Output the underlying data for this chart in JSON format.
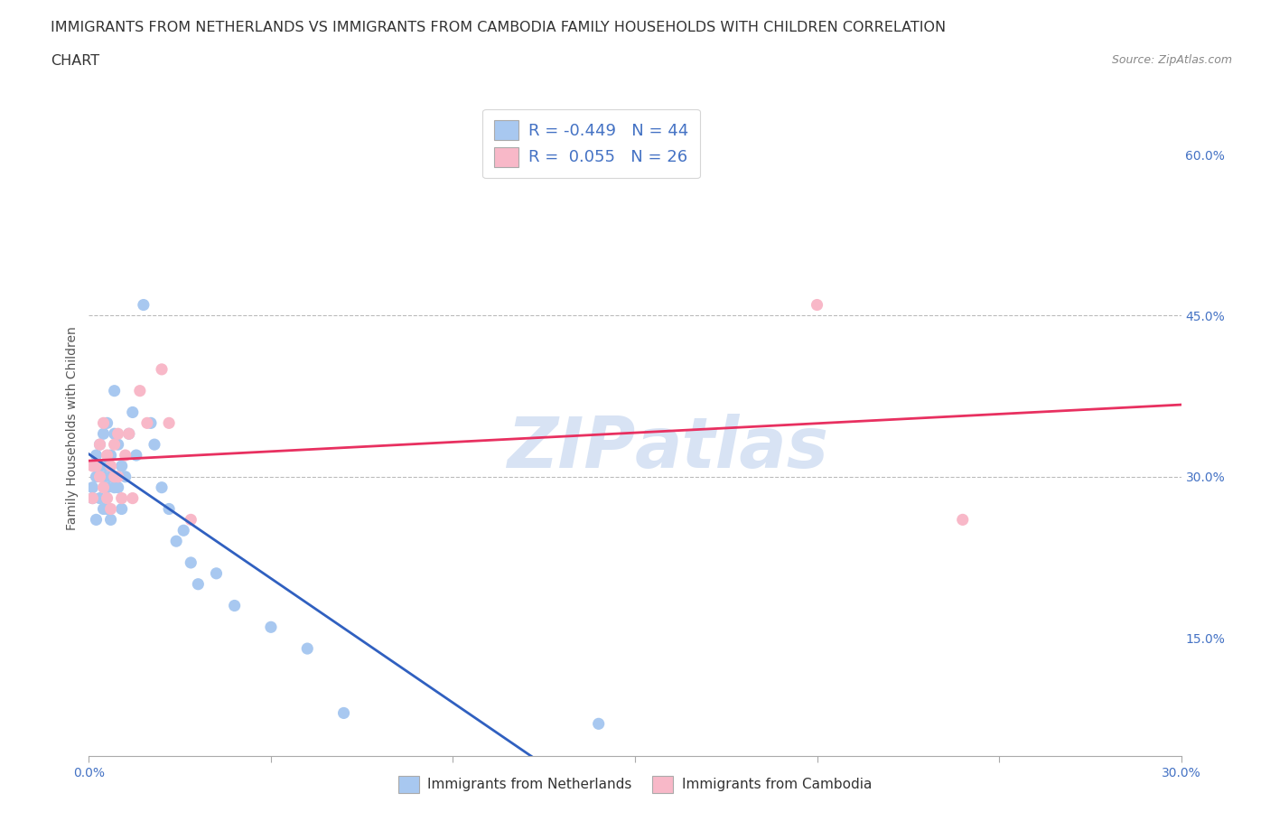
{
  "title_line1": "IMMIGRANTS FROM NETHERLANDS VS IMMIGRANTS FROM CAMBODIA FAMILY HOUSEHOLDS WITH CHILDREN CORRELATION",
  "title_line2": "CHART",
  "source_text": "Source: ZipAtlas.com",
  "ylabel": "Family Households with Children",
  "xlim": [
    0.0,
    0.3
  ],
  "ylim": [
    0.04,
    0.65
  ],
  "yticks_right": [
    0.15,
    0.3,
    0.45,
    0.6
  ],
  "ytick_right_labels": [
    "15.0%",
    "30.0%",
    "45.0%",
    "60.0%"
  ],
  "hlines": [
    0.3,
    0.45
  ],
  "netherlands_color": "#A8C8F0",
  "cambodia_color": "#F8B8C8",
  "netherlands_line_color": "#3060C0",
  "cambodia_line_color": "#E83060",
  "R_netherlands": -0.449,
  "N_netherlands": 44,
  "R_cambodia": 0.055,
  "N_cambodia": 26,
  "watermark_color": "#C8D8F0",
  "title_fontsize": 11.5,
  "axis_label_fontsize": 10,
  "tick_fontsize": 10,
  "nl_x": [
    0.001,
    0.001,
    0.002,
    0.002,
    0.002,
    0.003,
    0.003,
    0.003,
    0.004,
    0.004,
    0.004,
    0.005,
    0.005,
    0.005,
    0.005,
    0.006,
    0.006,
    0.006,
    0.007,
    0.007,
    0.007,
    0.008,
    0.008,
    0.009,
    0.009,
    0.01,
    0.011,
    0.012,
    0.013,
    0.015,
    0.017,
    0.018,
    0.02,
    0.022,
    0.024,
    0.026,
    0.028,
    0.03,
    0.035,
    0.04,
    0.05,
    0.06,
    0.07,
    0.14
  ],
  "nl_y": [
    0.29,
    0.28,
    0.32,
    0.3,
    0.26,
    0.33,
    0.31,
    0.28,
    0.3,
    0.27,
    0.34,
    0.31,
    0.29,
    0.35,
    0.27,
    0.32,
    0.3,
    0.26,
    0.34,
    0.29,
    0.38,
    0.33,
    0.29,
    0.31,
    0.27,
    0.3,
    0.34,
    0.36,
    0.32,
    0.46,
    0.35,
    0.33,
    0.29,
    0.27,
    0.24,
    0.25,
    0.22,
    0.2,
    0.21,
    0.18,
    0.16,
    0.14,
    0.08,
    0.07
  ],
  "cam_x": [
    0.001,
    0.001,
    0.002,
    0.003,
    0.003,
    0.004,
    0.004,
    0.005,
    0.005,
    0.006,
    0.006,
    0.007,
    0.007,
    0.008,
    0.008,
    0.009,
    0.01,
    0.011,
    0.012,
    0.014,
    0.016,
    0.02,
    0.022,
    0.028,
    0.2,
    0.24
  ],
  "cam_y": [
    0.31,
    0.28,
    0.31,
    0.33,
    0.3,
    0.35,
    0.29,
    0.32,
    0.28,
    0.31,
    0.27,
    0.33,
    0.3,
    0.3,
    0.34,
    0.28,
    0.32,
    0.34,
    0.28,
    0.38,
    0.35,
    0.4,
    0.35,
    0.26,
    0.46,
    0.26
  ],
  "nl_trendline": [
    0.315,
    -1.85
  ],
  "cam_trendline": [
    0.298,
    0.095
  ]
}
